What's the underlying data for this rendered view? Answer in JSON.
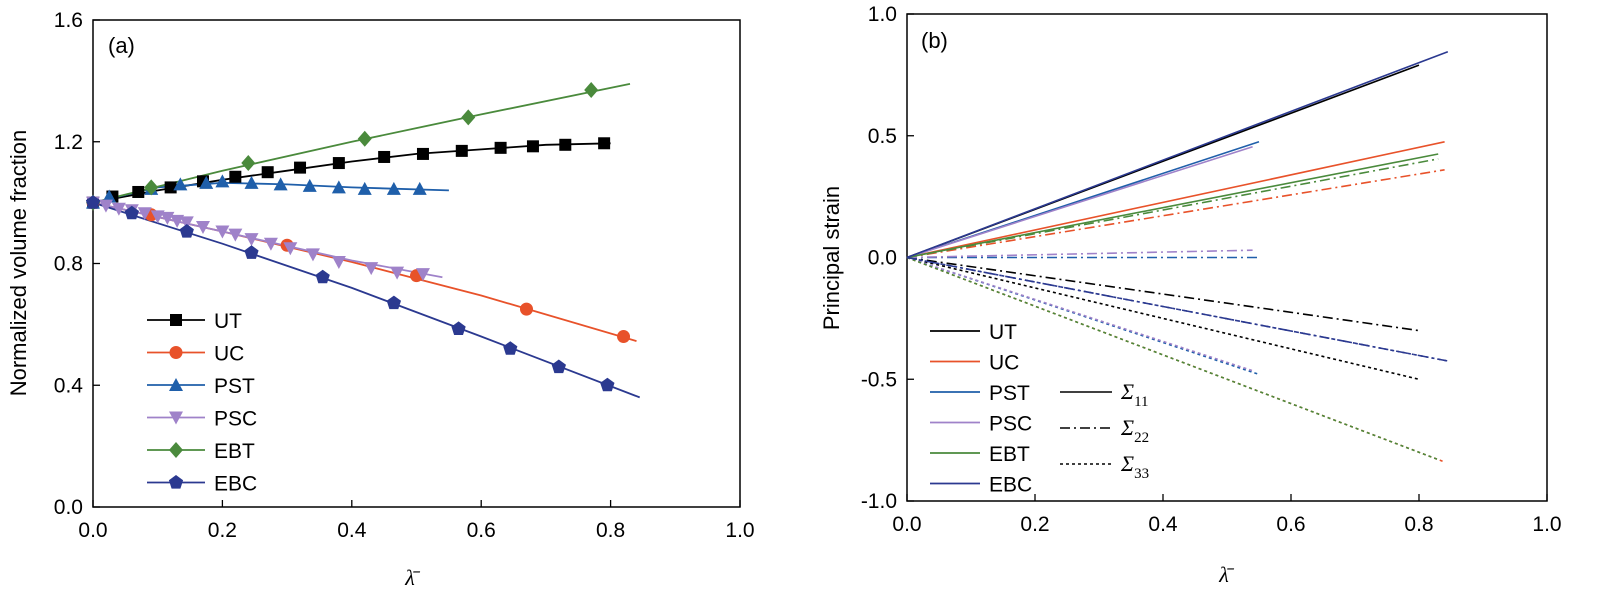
{
  "chart_data": [
    {
      "panel_label": "(a)",
      "type": "line",
      "xlabel": "λ̄",
      "ylabel": "Normalized volume fraction",
      "xlim": [
        0,
        1.0
      ],
      "ylim": [
        0,
        1.6
      ],
      "xticks": [
        "0.0",
        "0.2",
        "0.4",
        "0.6",
        "0.8",
        "1.0"
      ],
      "yticks": [
        "0.0",
        "0.4",
        "0.8",
        "1.2",
        "1.6"
      ],
      "legend_position": "bottom-left",
      "series": [
        {
          "name": "UT",
          "color": "#000000",
          "marker": "square",
          "x": [
            0,
            0.03,
            0.07,
            0.12,
            0.17,
            0.22,
            0.27,
            0.32,
            0.38,
            0.45,
            0.51,
            0.57,
            0.63,
            0.68,
            0.73,
            0.79
          ],
          "y": [
            1.0,
            1.02,
            1.035,
            1.05,
            1.07,
            1.085,
            1.1,
            1.115,
            1.13,
            1.15,
            1.16,
            1.17,
            1.18,
            1.185,
            1.19,
            1.195
          ],
          "fit_x": [
            0,
            0.1,
            0.2,
            0.3,
            0.4,
            0.5,
            0.6,
            0.7,
            0.8
          ],
          "fit_y": [
            1.0,
            1.04,
            1.075,
            1.105,
            1.135,
            1.16,
            1.175,
            1.19,
            1.195
          ]
        },
        {
          "name": "UC",
          "color": "#e8522a",
          "marker": "circle",
          "x": [
            0,
            0.09,
            0.3,
            0.5,
            0.67,
            0.82
          ],
          "y": [
            1.0,
            0.96,
            0.86,
            0.76,
            0.65,
            0.56
          ],
          "fit_x": [
            0,
            0.2,
            0.4,
            0.6,
            0.84
          ],
          "fit_y": [
            1.0,
            0.905,
            0.805,
            0.695,
            0.545
          ]
        },
        {
          "name": "PST",
          "color": "#1f5faa",
          "marker": "triangle-up",
          "x": [
            0,
            0.025,
            0.09,
            0.135,
            0.175,
            0.2,
            0.245,
            0.29,
            0.335,
            0.38,
            0.42,
            0.465,
            0.505
          ],
          "y": [
            1.0,
            1.02,
            1.045,
            1.06,
            1.065,
            1.07,
            1.065,
            1.06,
            1.055,
            1.05,
            1.045,
            1.045,
            1.045
          ],
          "fit_x": [
            0,
            0.1,
            0.2,
            0.3,
            0.4,
            0.55
          ],
          "fit_y": [
            1.0,
            1.05,
            1.065,
            1.06,
            1.05,
            1.04
          ]
        },
        {
          "name": "PSC",
          "color": "#9f82c9",
          "marker": "triangle-down",
          "x": [
            0,
            0.02,
            0.04,
            0.06,
            0.08,
            0.1,
            0.115,
            0.13,
            0.145,
            0.17,
            0.2,
            0.22,
            0.245,
            0.275,
            0.305,
            0.34,
            0.38,
            0.43,
            0.47,
            0.51
          ],
          "y": [
            1.0,
            0.99,
            0.98,
            0.975,
            0.965,
            0.955,
            0.95,
            0.94,
            0.935,
            0.92,
            0.905,
            0.895,
            0.88,
            0.865,
            0.85,
            0.83,
            0.805,
            0.785,
            0.77,
            0.765
          ],
          "fit_x": [
            0,
            0.2,
            0.4,
            0.54
          ],
          "fit_y": [
            1.0,
            0.905,
            0.81,
            0.755
          ]
        },
        {
          "name": "EBT",
          "color": "#4a8a3c",
          "marker": "diamond",
          "x": [
            0,
            0.09,
            0.24,
            0.42,
            0.58,
            0.77
          ],
          "y": [
            1.0,
            1.05,
            1.13,
            1.21,
            1.28,
            1.37
          ],
          "fit_x": [
            0,
            0.2,
            0.4,
            0.6,
            0.83
          ],
          "fit_y": [
            1.0,
            1.105,
            1.2,
            1.29,
            1.39
          ]
        },
        {
          "name": "EBC",
          "color": "#2b3990",
          "marker": "pentagon",
          "x": [
            0,
            0.06,
            0.145,
            0.245,
            0.355,
            0.465,
            0.565,
            0.645,
            0.72,
            0.795
          ],
          "y": [
            1.0,
            0.965,
            0.905,
            0.835,
            0.755,
            0.67,
            0.585,
            0.52,
            0.46,
            0.4
          ],
          "fit_x": [
            0,
            0.2,
            0.4,
            0.6,
            0.845
          ],
          "fit_y": [
            1.0,
            0.865,
            0.72,
            0.56,
            0.36
          ]
        }
      ]
    },
    {
      "panel_label": "(b)",
      "type": "line",
      "xlabel": "λ̄",
      "ylabel": "Principal strain",
      "xlim": [
        0,
        1.0
      ],
      "ylim": [
        -1.0,
        1.0
      ],
      "xticks": [
        "0.0",
        "0.2",
        "0.4",
        "0.6",
        "0.8",
        "1.0"
      ],
      "yticks": [
        "-1.0",
        "-0.5",
        "0.0",
        "0.5",
        "1.0"
      ],
      "legend_position": "bottom-left",
      "color_legend": [
        {
          "name": "UT",
          "color": "#000000"
        },
        {
          "name": "UC",
          "color": "#e8522a"
        },
        {
          "name": "PST",
          "color": "#1f5faa"
        },
        {
          "name": "PSC",
          "color": "#9f82c9"
        },
        {
          "name": "EBT",
          "color": "#4a8a3c"
        },
        {
          "name": "EBC",
          "color": "#2b3990"
        }
      ],
      "style_legend": [
        {
          "symbol": "Σ",
          "subscript": "11",
          "dash": "solid"
        },
        {
          "symbol": "Σ",
          "subscript": "22",
          "dash": "dashdot"
        },
        {
          "symbol": "Σ",
          "subscript": "33",
          "dash": "dotted"
        }
      ],
      "series": [
        {
          "loading": "UT",
          "component": "11",
          "color": "#000000",
          "dash": "solid",
          "x": [
            0,
            0.8
          ],
          "y": [
            0,
            0.79
          ]
        },
        {
          "loading": "UT",
          "component": "22",
          "color": "#000000",
          "dash": "dashdot",
          "x": [
            0,
            0.8
          ],
          "y": [
            0,
            -0.3
          ]
        },
        {
          "loading": "UT",
          "component": "33",
          "color": "#000000",
          "dash": "dotted",
          "x": [
            0,
            0.8
          ],
          "y": [
            0,
            -0.5
          ]
        },
        {
          "loading": "UC",
          "component": "11",
          "color": "#e8522a",
          "dash": "solid",
          "x": [
            0,
            0.84
          ],
          "y": [
            0,
            0.475
          ]
        },
        {
          "loading": "UC",
          "component": "22",
          "color": "#e8522a",
          "dash": "dashdot",
          "x": [
            0,
            0.84
          ],
          "y": [
            0,
            0.36
          ]
        },
        {
          "loading": "UC",
          "component": "33",
          "color": "#e8522a",
          "dash": "dotted",
          "x": [
            0,
            0.84
          ],
          "y": [
            0,
            -0.84
          ]
        },
        {
          "loading": "PST",
          "component": "11",
          "color": "#1f5faa",
          "dash": "solid",
          "x": [
            0,
            0.55
          ],
          "y": [
            0,
            0.475
          ]
        },
        {
          "loading": "PST",
          "component": "22",
          "color": "#1f5faa",
          "dash": "dashdot",
          "x": [
            0,
            0.55
          ],
          "y": [
            0,
            0.0
          ]
        },
        {
          "loading": "PST",
          "component": "33",
          "color": "#1f5faa",
          "dash": "dotted",
          "x": [
            0,
            0.55
          ],
          "y": [
            0,
            -0.48
          ]
        },
        {
          "loading": "PSC",
          "component": "11",
          "color": "#9f82c9",
          "dash": "solid",
          "x": [
            0,
            0.54
          ],
          "y": [
            0,
            0.455
          ]
        },
        {
          "loading": "PSC",
          "component": "22",
          "color": "#9f82c9",
          "dash": "dashdot",
          "x": [
            0,
            0.54
          ],
          "y": [
            0,
            0.03
          ]
        },
        {
          "loading": "PSC",
          "component": "33",
          "color": "#9f82c9",
          "dash": "dotted",
          "x": [
            0,
            0.54
          ],
          "y": [
            0,
            -0.465
          ]
        },
        {
          "loading": "EBT",
          "component": "11",
          "color": "#4a8a3c",
          "dash": "solid",
          "x": [
            0,
            0.83
          ],
          "y": [
            0,
            0.425
          ]
        },
        {
          "loading": "EBT",
          "component": "22",
          "color": "#4a8a3c",
          "dash": "dashdot",
          "x": [
            0,
            0.83
          ],
          "y": [
            0,
            0.405
          ]
        },
        {
          "loading": "EBT",
          "component": "33",
          "color": "#4a8a3c",
          "dash": "dotted",
          "x": [
            0,
            0.83
          ],
          "y": [
            0,
            -0.83
          ]
        },
        {
          "loading": "EBC",
          "component": "11",
          "color": "#2b3990",
          "dash": "solid",
          "x": [
            0,
            0.845
          ],
          "y": [
            0,
            0.845
          ]
        },
        {
          "loading": "EBC",
          "component": "22",
          "color": "#2b3990",
          "dash": "dashdot",
          "x": [
            0,
            0.845
          ],
          "y": [
            0,
            -0.425
          ]
        },
        {
          "loading": "EBC",
          "component": "33",
          "color": "#2b3990",
          "dash": "dotted",
          "x": [
            0,
            0.845
          ],
          "y": [
            0,
            -0.425
          ]
        }
      ]
    }
  ]
}
